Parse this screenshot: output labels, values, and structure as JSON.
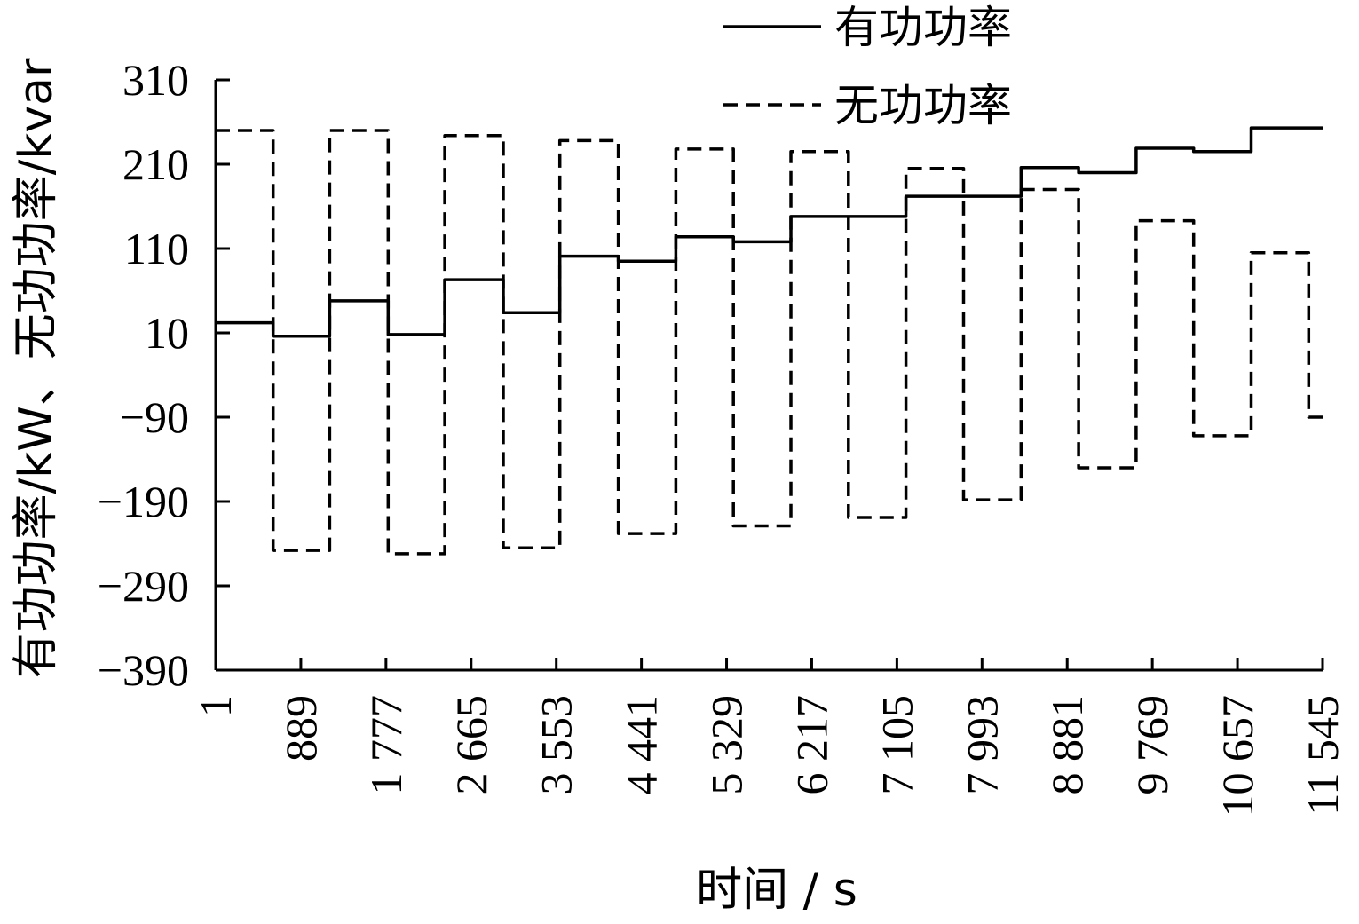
{
  "chart_data": {
    "type": "line",
    "title": "",
    "xlabel": "时间 / s",
    "ylabel": "有功功率/kW、无功功率/kvar",
    "xlim": [
      1,
      11545
    ],
    "ylim": [
      -390,
      310
    ],
    "x_ticks": [
      1,
      889,
      1777,
      2665,
      3553,
      4441,
      5329,
      6217,
      7105,
      7993,
      8881,
      9769,
      10657,
      11545
    ],
    "x_tick_labels": [
      "1",
      "889",
      "1 777",
      "2 665",
      "3 553",
      "4 441",
      "5 329",
      "6 217",
      "7 105",
      "7 993",
      "8 881",
      "9 769",
      "10 657",
      "11 545"
    ],
    "y_ticks": [
      310,
      210,
      110,
      10,
      -90,
      -190,
      -290,
      -390
    ],
    "y_tick_labels": [
      "310",
      "210",
      "110",
      "10",
      "−90",
      "−190",
      "−290",
      "−390"
    ],
    "grid": false,
    "legend_position": "top-right",
    "series": [
      {
        "name": "有功功率",
        "style": "solid",
        "color": "#000000",
        "x": [
          1,
          600,
          600,
          1190,
          1190,
          1800,
          1800,
          2390,
          2390,
          3000,
          3000,
          3590,
          3590,
          4200,
          4200,
          4800,
          4800,
          5400,
          5400,
          6000,
          6000,
          6600,
          6600,
          7200,
          7200,
          7800,
          7800,
          8400,
          8400,
          9000,
          9000,
          9600,
          9600,
          10200,
          10200,
          10800,
          10800,
          11545
        ],
        "y": [
          22,
          22,
          6,
          6,
          48,
          48,
          8,
          8,
          73,
          73,
          34,
          34,
          101,
          101,
          95,
          95,
          124,
          124,
          118,
          118,
          148,
          148,
          148,
          148,
          172,
          172,
          172,
          172,
          206,
          206,
          200,
          200,
          229,
          229,
          225,
          225,
          253,
          253
        ]
      },
      {
        "name": "无功功率",
        "style": "dashed",
        "color": "#000000",
        "x": [
          1,
          600,
          600,
          1190,
          1190,
          1800,
          1800,
          2390,
          2390,
          3000,
          3000,
          3590,
          3590,
          4200,
          4200,
          4800,
          4800,
          5400,
          5400,
          6000,
          6000,
          6600,
          6600,
          7200,
          7200,
          7800,
          7800,
          8400,
          8400,
          9000,
          9000,
          9600,
          9600,
          10200,
          10200,
          10800,
          10800,
          11400,
          11400,
          11545
        ],
        "y": [
          250,
          250,
          -248,
          -248,
          250,
          250,
          -252,
          -252,
          244,
          244,
          -245,
          -245,
          238,
          238,
          -228,
          -228,
          228,
          228,
          -219,
          -219,
          225,
          225,
          -209,
          -209,
          205,
          205,
          -188,
          -188,
          180,
          180,
          -150,
          -150,
          143,
          143,
          -112,
          -112,
          105,
          105,
          -90,
          -90
        ]
      }
    ]
  }
}
